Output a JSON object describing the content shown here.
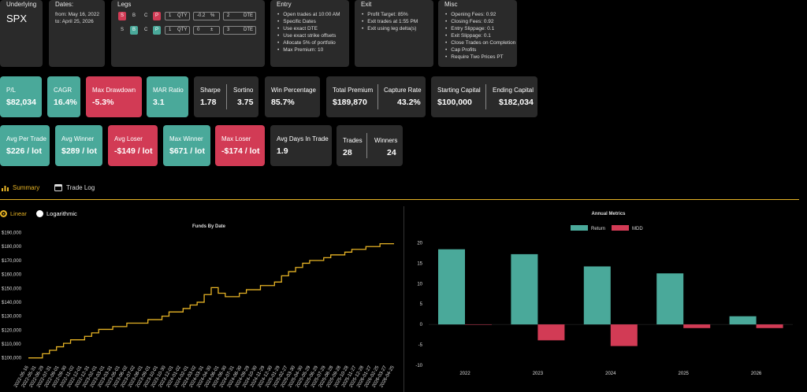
{
  "underlying": {
    "title": "Underlying",
    "value": "SPX"
  },
  "dates": {
    "title": "Dates:",
    "from": "from: May 16, 2022",
    "to": "to: April 25, 2026"
  },
  "legs": {
    "title": "Legs",
    "rows": [
      {
        "side": "S",
        "b": "B",
        "c": "C",
        "p": "P",
        "qty": "1",
        "qty_label": "QTY",
        "delta": "-0.2",
        "delta_unit": "%",
        "dte": "2",
        "dte_label": "DTE"
      },
      {
        "side": "S",
        "b": "B",
        "c": "C",
        "p": "P",
        "qty": "1",
        "qty_label": "QTY",
        "delta": "0",
        "delta_unit": "±",
        "dte": "3",
        "dte_label": "DTE"
      }
    ]
  },
  "entry": {
    "title": "Entry",
    "items": [
      "Open trades at 10:00 AM",
      "Specific Dates",
      "Use exact DTE",
      "Use exact strike offsets",
      "Allocate 5% of portfolio",
      "Max Premium: 10"
    ]
  },
  "exit": {
    "title": "Exit",
    "items": [
      "Profit Target: 85%",
      "Exit trades at 1:55 PM",
      "Exit using leg delta(s)"
    ]
  },
  "misc": {
    "title": "Misc",
    "items": [
      "Opening Fees: 0.92",
      "Closing Fees: 0.92",
      "Entry Slippage: 0.1",
      "Exit Slippage: 0.1",
      "Close Trades on Completion",
      "Cap Profits",
      "Require Two Prices PT"
    ]
  },
  "stats_row1": {
    "pl": {
      "label": "P/L",
      "value": "$82,034"
    },
    "cagr": {
      "label": "CAGR",
      "value": "16.4%"
    },
    "max_drawdown": {
      "label": "Max Drawdown",
      "value": "-5.3%"
    },
    "mar": {
      "label": "MAR Ratio",
      "value": "3.1"
    },
    "sharpe": {
      "label": "Sharpe",
      "value": "1.78"
    },
    "sortino": {
      "label": "Sortino",
      "value": "3.75"
    },
    "win_pct": {
      "label": "Win Percentage",
      "value": "85.7%"
    },
    "total_premium": {
      "label": "Total Premium",
      "value": "$189,870"
    },
    "capture_rate": {
      "label": "Capture Rate",
      "value": "43.2%"
    },
    "starting_capital": {
      "label": "Starting Capital",
      "value": "$100,000"
    },
    "ending_capital": {
      "label": "Ending Capital",
      "value": "$182,034"
    }
  },
  "stats_row2": {
    "avg_trade": {
      "label": "Avg Per Trade",
      "value": "$226 / lot"
    },
    "avg_winner": {
      "label": "Avg Winner",
      "value": "$289 / lot"
    },
    "avg_loser": {
      "label": "Avg Loser",
      "value": "-$149 / lot"
    },
    "max_winner": {
      "label": "Max Winner",
      "value": "$671 / lot"
    },
    "max_loser": {
      "label": "Max Loser",
      "value": "-$174 / lot"
    },
    "avg_days": {
      "label": "Avg Days In Trade",
      "value": "1.9"
    },
    "trades": {
      "label": "Trades",
      "value": "28"
    },
    "winners": {
      "label": "Winners",
      "value": "24"
    }
  },
  "tabs": {
    "summary": "Summary",
    "trade_log": "Trade Log",
    "summary_icon": "bar-chart-icon",
    "trade_log_icon": "table-icon",
    "accent": "#e6b325"
  },
  "scale_toggle": {
    "linear": "Linear",
    "log": "Logarithmic",
    "selected": "Linear"
  },
  "chart_data": [
    {
      "type": "line",
      "title": "Funds By Date",
      "color": "#e6b325",
      "ylim": [
        97000,
        192000
      ],
      "yticks": [
        100000,
        110000,
        120000,
        130000,
        140000,
        150000,
        160000,
        170000,
        180000,
        190000
      ],
      "ytick_labels": [
        "$100,000",
        "$110,000",
        "$120,000",
        "$130,000",
        "$140,000",
        "$150,000",
        "$160,000",
        "$170,000",
        "$180,000",
        "$190,000"
      ],
      "x": [
        "2022-05-16",
        "2022-06-13",
        "2022-07-11",
        "2022-08-08",
        "2022-09-05",
        "2022-10-03",
        "2022-10-31",
        "2022-11-28",
        "2022-12-26",
        "2023-01-23",
        "2023-02-20",
        "2023-03-20",
        "2023-04-17",
        "2023-05-15",
        "2023-06-12",
        "2023-07-10",
        "2023-08-07",
        "2023-09-04",
        "2023-10-02",
        "2023-10-30",
        "2023-11-27",
        "2023-12-25",
        "2024-01-22",
        "2024-02-19",
        "2024-03-18",
        "2024-04-15",
        "2024-05-13",
        "2024-06-10",
        "2024-07-08",
        "2024-08-05",
        "2024-09-02",
        "2024-09-30",
        "2024-10-28",
        "2024-11-25",
        "2024-12-23",
        "2025-01-20",
        "2025-02-17",
        "2025-03-17",
        "2025-04-14",
        "2025-05-12",
        "2025-06-09",
        "2025-07-07",
        "2025-08-04",
        "2025-09-01",
        "2025-09-29",
        "2025-10-27",
        "2025-11-24",
        "2025-12-22",
        "2026-01-19",
        "2026-02-16",
        "2026-03-16",
        "2026-04-13",
        "2026-04-25"
      ],
      "y": [
        100000,
        100000,
        103000,
        105500,
        108000,
        110500,
        113000,
        113000,
        115500,
        118000,
        120500,
        120500,
        122500,
        122500,
        125000,
        125000,
        125000,
        127500,
        127500,
        130000,
        133000,
        133000,
        135500,
        138000,
        140000,
        145500,
        150500,
        146500,
        144000,
        144000,
        146500,
        149000,
        149000,
        152000,
        152000,
        154500,
        159000,
        162000,
        165000,
        168000,
        170000,
        170000,
        172000,
        174000,
        174000,
        176000,
        178000,
        178000,
        180000,
        180000,
        182034,
        182034,
        182034
      ],
      "xtick_labels": [
        "2022-05-16",
        "2022-05-31",
        "2022-06-29",
        "2022-07-31",
        "2022-09-01",
        "2022-09-30",
        "2022-11-02",
        "2022-12-01",
        "2022-12-31",
        "2023-02-01",
        "2023-03-01",
        "2023-03-31",
        "2023-05-01",
        "2023-06-02",
        "2023-07-02",
        "2023-08-01",
        "2023-09-01",
        "2023-10-01",
        "2023-10-30",
        "2023-12-01",
        "2024-01-02",
        "2024-02-01",
        "2024-03-02",
        "2024-03-31",
        "2024-04-30",
        "2024-06-01",
        "2024-06-30",
        "2024-07-31",
        "2024-08-30",
        "2024-09-29",
        "2024-10-30",
        "2024-11-29",
        "2024-12-30",
        "2025-01-29",
        "2025-02-27",
        "2025-03-30",
        "2025-04-30",
        "2025-05-29",
        "2025-06-29",
        "2025-07-29",
        "2025-08-28",
        "2025-09-28",
        "2025-10-28",
        "2025-11-27",
        "2025-12-28",
        "2026-01-27",
        "2026-02-25",
        "2026-03-27",
        "2026-04-25"
      ]
    },
    {
      "type": "bar",
      "title": "Annual Metrics",
      "categories": [
        "2022",
        "2023",
        "2024",
        "2025",
        "2026"
      ],
      "series": [
        {
          "name": "Return",
          "color": "#4aa99a",
          "values": [
            18.4,
            17.2,
            14.2,
            12.5,
            2.0
          ]
        },
        {
          "name": "MDD",
          "color": "#d23b55",
          "values": [
            0,
            -3.9,
            -5.3,
            -0.9,
            -0.9
          ]
        }
      ],
      "ylim": [
        -10,
        22
      ],
      "yticks": [
        20,
        15,
        10,
        5,
        0,
        -5,
        -10
      ]
    }
  ]
}
